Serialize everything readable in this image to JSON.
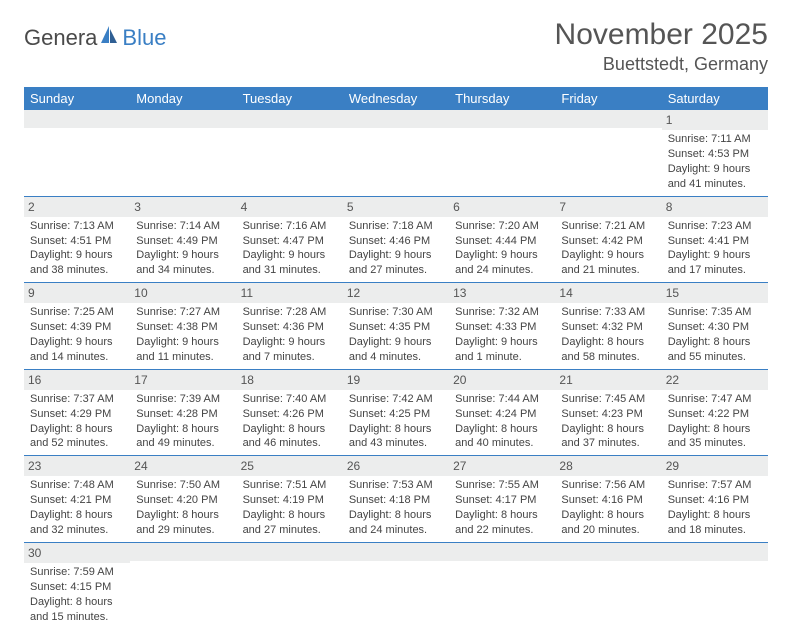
{
  "logo": {
    "text1": "Genera",
    "text2": "Blue"
  },
  "header": {
    "month_title": "November 2025",
    "location": "Buettstedt, Germany"
  },
  "colors": {
    "header_bg": "#3a7fc4",
    "header_fg": "#ffffff",
    "daynum_bg": "#eceded",
    "row_border": "#3a7fc4",
    "text": "#444444"
  },
  "weekdays": [
    "Sunday",
    "Monday",
    "Tuesday",
    "Wednesday",
    "Thursday",
    "Friday",
    "Saturday"
  ],
  "weeks": [
    [
      {
        "blank": true
      },
      {
        "blank": true
      },
      {
        "blank": true
      },
      {
        "blank": true
      },
      {
        "blank": true
      },
      {
        "blank": true
      },
      {
        "day": "1",
        "sunrise": "Sunrise: 7:11 AM",
        "sunset": "Sunset: 4:53 PM",
        "day1": "Daylight: 9 hours",
        "day2": "and 41 minutes."
      }
    ],
    [
      {
        "day": "2",
        "sunrise": "Sunrise: 7:13 AM",
        "sunset": "Sunset: 4:51 PM",
        "day1": "Daylight: 9 hours",
        "day2": "and 38 minutes."
      },
      {
        "day": "3",
        "sunrise": "Sunrise: 7:14 AM",
        "sunset": "Sunset: 4:49 PM",
        "day1": "Daylight: 9 hours",
        "day2": "and 34 minutes."
      },
      {
        "day": "4",
        "sunrise": "Sunrise: 7:16 AM",
        "sunset": "Sunset: 4:47 PM",
        "day1": "Daylight: 9 hours",
        "day2": "and 31 minutes."
      },
      {
        "day": "5",
        "sunrise": "Sunrise: 7:18 AM",
        "sunset": "Sunset: 4:46 PM",
        "day1": "Daylight: 9 hours",
        "day2": "and 27 minutes."
      },
      {
        "day": "6",
        "sunrise": "Sunrise: 7:20 AM",
        "sunset": "Sunset: 4:44 PM",
        "day1": "Daylight: 9 hours",
        "day2": "and 24 minutes."
      },
      {
        "day": "7",
        "sunrise": "Sunrise: 7:21 AM",
        "sunset": "Sunset: 4:42 PM",
        "day1": "Daylight: 9 hours",
        "day2": "and 21 minutes."
      },
      {
        "day": "8",
        "sunrise": "Sunrise: 7:23 AM",
        "sunset": "Sunset: 4:41 PM",
        "day1": "Daylight: 9 hours",
        "day2": "and 17 minutes."
      }
    ],
    [
      {
        "day": "9",
        "sunrise": "Sunrise: 7:25 AM",
        "sunset": "Sunset: 4:39 PM",
        "day1": "Daylight: 9 hours",
        "day2": "and 14 minutes."
      },
      {
        "day": "10",
        "sunrise": "Sunrise: 7:27 AM",
        "sunset": "Sunset: 4:38 PM",
        "day1": "Daylight: 9 hours",
        "day2": "and 11 minutes."
      },
      {
        "day": "11",
        "sunrise": "Sunrise: 7:28 AM",
        "sunset": "Sunset: 4:36 PM",
        "day1": "Daylight: 9 hours",
        "day2": "and 7 minutes."
      },
      {
        "day": "12",
        "sunrise": "Sunrise: 7:30 AM",
        "sunset": "Sunset: 4:35 PM",
        "day1": "Daylight: 9 hours",
        "day2": "and 4 minutes."
      },
      {
        "day": "13",
        "sunrise": "Sunrise: 7:32 AM",
        "sunset": "Sunset: 4:33 PM",
        "day1": "Daylight: 9 hours",
        "day2": "and 1 minute."
      },
      {
        "day": "14",
        "sunrise": "Sunrise: 7:33 AM",
        "sunset": "Sunset: 4:32 PM",
        "day1": "Daylight: 8 hours",
        "day2": "and 58 minutes."
      },
      {
        "day": "15",
        "sunrise": "Sunrise: 7:35 AM",
        "sunset": "Sunset: 4:30 PM",
        "day1": "Daylight: 8 hours",
        "day2": "and 55 minutes."
      }
    ],
    [
      {
        "day": "16",
        "sunrise": "Sunrise: 7:37 AM",
        "sunset": "Sunset: 4:29 PM",
        "day1": "Daylight: 8 hours",
        "day2": "and 52 minutes."
      },
      {
        "day": "17",
        "sunrise": "Sunrise: 7:39 AM",
        "sunset": "Sunset: 4:28 PM",
        "day1": "Daylight: 8 hours",
        "day2": "and 49 minutes."
      },
      {
        "day": "18",
        "sunrise": "Sunrise: 7:40 AM",
        "sunset": "Sunset: 4:26 PM",
        "day1": "Daylight: 8 hours",
        "day2": "and 46 minutes."
      },
      {
        "day": "19",
        "sunrise": "Sunrise: 7:42 AM",
        "sunset": "Sunset: 4:25 PM",
        "day1": "Daylight: 8 hours",
        "day2": "and 43 minutes."
      },
      {
        "day": "20",
        "sunrise": "Sunrise: 7:44 AM",
        "sunset": "Sunset: 4:24 PM",
        "day1": "Daylight: 8 hours",
        "day2": "and 40 minutes."
      },
      {
        "day": "21",
        "sunrise": "Sunrise: 7:45 AM",
        "sunset": "Sunset: 4:23 PM",
        "day1": "Daylight: 8 hours",
        "day2": "and 37 minutes."
      },
      {
        "day": "22",
        "sunrise": "Sunrise: 7:47 AM",
        "sunset": "Sunset: 4:22 PM",
        "day1": "Daylight: 8 hours",
        "day2": "and 35 minutes."
      }
    ],
    [
      {
        "day": "23",
        "sunrise": "Sunrise: 7:48 AM",
        "sunset": "Sunset: 4:21 PM",
        "day1": "Daylight: 8 hours",
        "day2": "and 32 minutes."
      },
      {
        "day": "24",
        "sunrise": "Sunrise: 7:50 AM",
        "sunset": "Sunset: 4:20 PM",
        "day1": "Daylight: 8 hours",
        "day2": "and 29 minutes."
      },
      {
        "day": "25",
        "sunrise": "Sunrise: 7:51 AM",
        "sunset": "Sunset: 4:19 PM",
        "day1": "Daylight: 8 hours",
        "day2": "and 27 minutes."
      },
      {
        "day": "26",
        "sunrise": "Sunrise: 7:53 AM",
        "sunset": "Sunset: 4:18 PM",
        "day1": "Daylight: 8 hours",
        "day2": "and 24 minutes."
      },
      {
        "day": "27",
        "sunrise": "Sunrise: 7:55 AM",
        "sunset": "Sunset: 4:17 PM",
        "day1": "Daylight: 8 hours",
        "day2": "and 22 minutes."
      },
      {
        "day": "28",
        "sunrise": "Sunrise: 7:56 AM",
        "sunset": "Sunset: 4:16 PM",
        "day1": "Daylight: 8 hours",
        "day2": "and 20 minutes."
      },
      {
        "day": "29",
        "sunrise": "Sunrise: 7:57 AM",
        "sunset": "Sunset: 4:16 PM",
        "day1": "Daylight: 8 hours",
        "day2": "and 18 minutes."
      }
    ],
    [
      {
        "day": "30",
        "sunrise": "Sunrise: 7:59 AM",
        "sunset": "Sunset: 4:15 PM",
        "day1": "Daylight: 8 hours",
        "day2": "and 15 minutes."
      },
      {
        "blank": true
      },
      {
        "blank": true
      },
      {
        "blank": true
      },
      {
        "blank": true
      },
      {
        "blank": true
      },
      {
        "blank": true
      }
    ]
  ]
}
